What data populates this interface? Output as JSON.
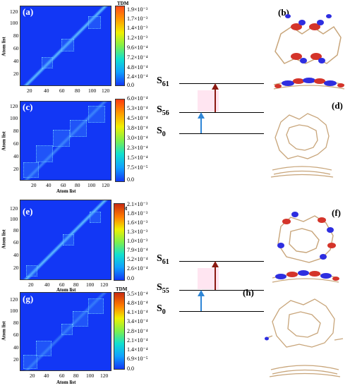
{
  "panels": {
    "a": "(a)",
    "b": "(b)",
    "c": "(c)",
    "d": "(d)",
    "e": "(e)",
    "f": "(f)",
    "g": "(g)",
    "h": "(h)"
  },
  "axes": {
    "x_title": "Atom list",
    "y_title": "Atom list",
    "x_ticks": [
      "20",
      "40",
      "60",
      "80",
      "100",
      "120"
    ],
    "y_ticks_a": [
      "20",
      "40",
      "60",
      "80",
      "100",
      "120"
    ],
    "y_ticks_c": [
      "20",
      "40",
      "60",
      "80",
      "100",
      "120"
    ],
    "y_ticks_e": [
      "20",
      "40",
      "60",
      "80",
      "100",
      "120"
    ],
    "y_ticks_g": [
      "20",
      "40",
      "60",
      "80",
      "100",
      "120"
    ]
  },
  "colorbars": {
    "tdm_title": "TDM",
    "a": [
      "1.9×10⁻³",
      "1.7×10⁻³",
      "1.4×10⁻³",
      "1.2×10⁻³",
      "9.6×10⁻⁴",
      "7.2×10⁻⁴",
      "4.8×10⁻⁴",
      "2.4×10⁻⁴",
      "0.0"
    ],
    "c": [
      "6.0×10⁻⁴",
      "5.3×10⁻⁴",
      "4.5×10⁻⁴",
      "3.8×10⁻⁴",
      "3.0×10⁻⁴",
      "2.3×10⁻⁴",
      "1.5×10⁻⁴",
      "7.5×10⁻⁵",
      "0.0"
    ],
    "e": [
      "2.1×10⁻³",
      "1.8×10⁻³",
      "1.6×10⁻³",
      "1.3×10⁻³",
      "1.0×10⁻³",
      "7.9×10⁻⁴",
      "5.2×10⁻⁴",
      "2.6×10⁻⁴",
      "0.0"
    ],
    "g": [
      "5.5×10⁻⁴",
      "4.8×10⁻⁴",
      "4.1×10⁻⁴",
      "3.4×10⁻⁴",
      "2.8×10⁻⁴",
      "2.1×10⁻⁴",
      "1.4×10⁻⁴",
      "6.9×10⁻⁵",
      "0.0"
    ]
  },
  "energy_top": {
    "upper": "61",
    "mid": "56",
    "ground": "0",
    "symbol": "S"
  },
  "energy_bottom": {
    "upper": "61",
    "mid": "55",
    "ground": "0",
    "symbol": "S"
  },
  "colors": {
    "heatmap_bg": "#1237f5",
    "arrow_blue": "#2f86d6",
    "arrow_red": "#8b1a12"
  }
}
